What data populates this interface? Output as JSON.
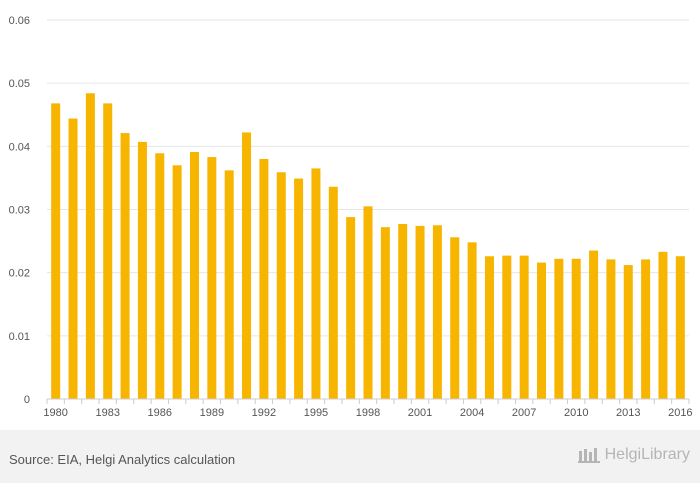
{
  "chart_data": {
    "type": "bar",
    "title": "",
    "xlabel": "",
    "ylabel": "",
    "ylim": [
      0,
      0.06
    ],
    "yticks": [
      "0",
      "0.01",
      "0.02",
      "0.03",
      "0.04",
      "0.05",
      "0.06"
    ],
    "xtick_labels": [
      "1980",
      "1983",
      "1986",
      "1989",
      "1992",
      "1995",
      "1998",
      "2001",
      "2004",
      "2007",
      "2010",
      "2013",
      "2016"
    ],
    "categories": [
      "1980",
      "1981",
      "1982",
      "1983",
      "1984",
      "1985",
      "1986",
      "1987",
      "1988",
      "1989",
      "1990",
      "1991",
      "1992",
      "1993",
      "1994",
      "1995",
      "1996",
      "1997",
      "1998",
      "1999",
      "2000",
      "2001",
      "2002",
      "2003",
      "2004",
      "2005",
      "2006",
      "2007",
      "2008",
      "2009",
      "2010",
      "2011",
      "2012",
      "2013",
      "2014",
      "2015",
      "2016"
    ],
    "values": [
      0.0468,
      0.0444,
      0.0484,
      0.0468,
      0.0421,
      0.0407,
      0.0389,
      0.037,
      0.0391,
      0.0383,
      0.0362,
      0.0422,
      0.038,
      0.0359,
      0.0349,
      0.0365,
      0.0336,
      0.0288,
      0.0305,
      0.0272,
      0.0277,
      0.0274,
      0.0275,
      0.0256,
      0.0248,
      0.0226,
      0.0227,
      0.0227,
      0.0216,
      0.0222,
      0.0222,
      0.0235,
      0.0221,
      0.0212,
      0.0221,
      0.0233,
      0.0226
    ],
    "bar_color": "#f7b500",
    "grid": true
  },
  "footer": {
    "source": "Source: EIA, Helgi Analytics calculation",
    "logo_text": "HelgiLibrary"
  }
}
